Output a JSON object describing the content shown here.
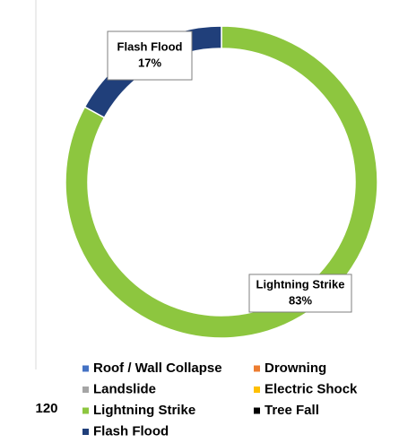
{
  "chart_data": {
    "type": "donut",
    "categories": [
      "Roof / Wall Collapse",
      "Drowning",
      "Landslide",
      "Electric Shock",
      "Lightning Strike",
      "Tree Fall",
      "Flash Flood"
    ],
    "values": [
      0,
      0,
      0,
      0,
      83,
      0,
      17
    ],
    "value_labels": [
      null,
      null,
      null,
      null,
      "83%",
      null,
      "17%"
    ],
    "colors": [
      "#4472c4",
      "#ed7d31",
      "#a5a5a5",
      "#ffc000",
      "#8dc63f",
      "#000000",
      "#203f7a"
    ],
    "annotation": "120",
    "legend": "bottom"
  }
}
